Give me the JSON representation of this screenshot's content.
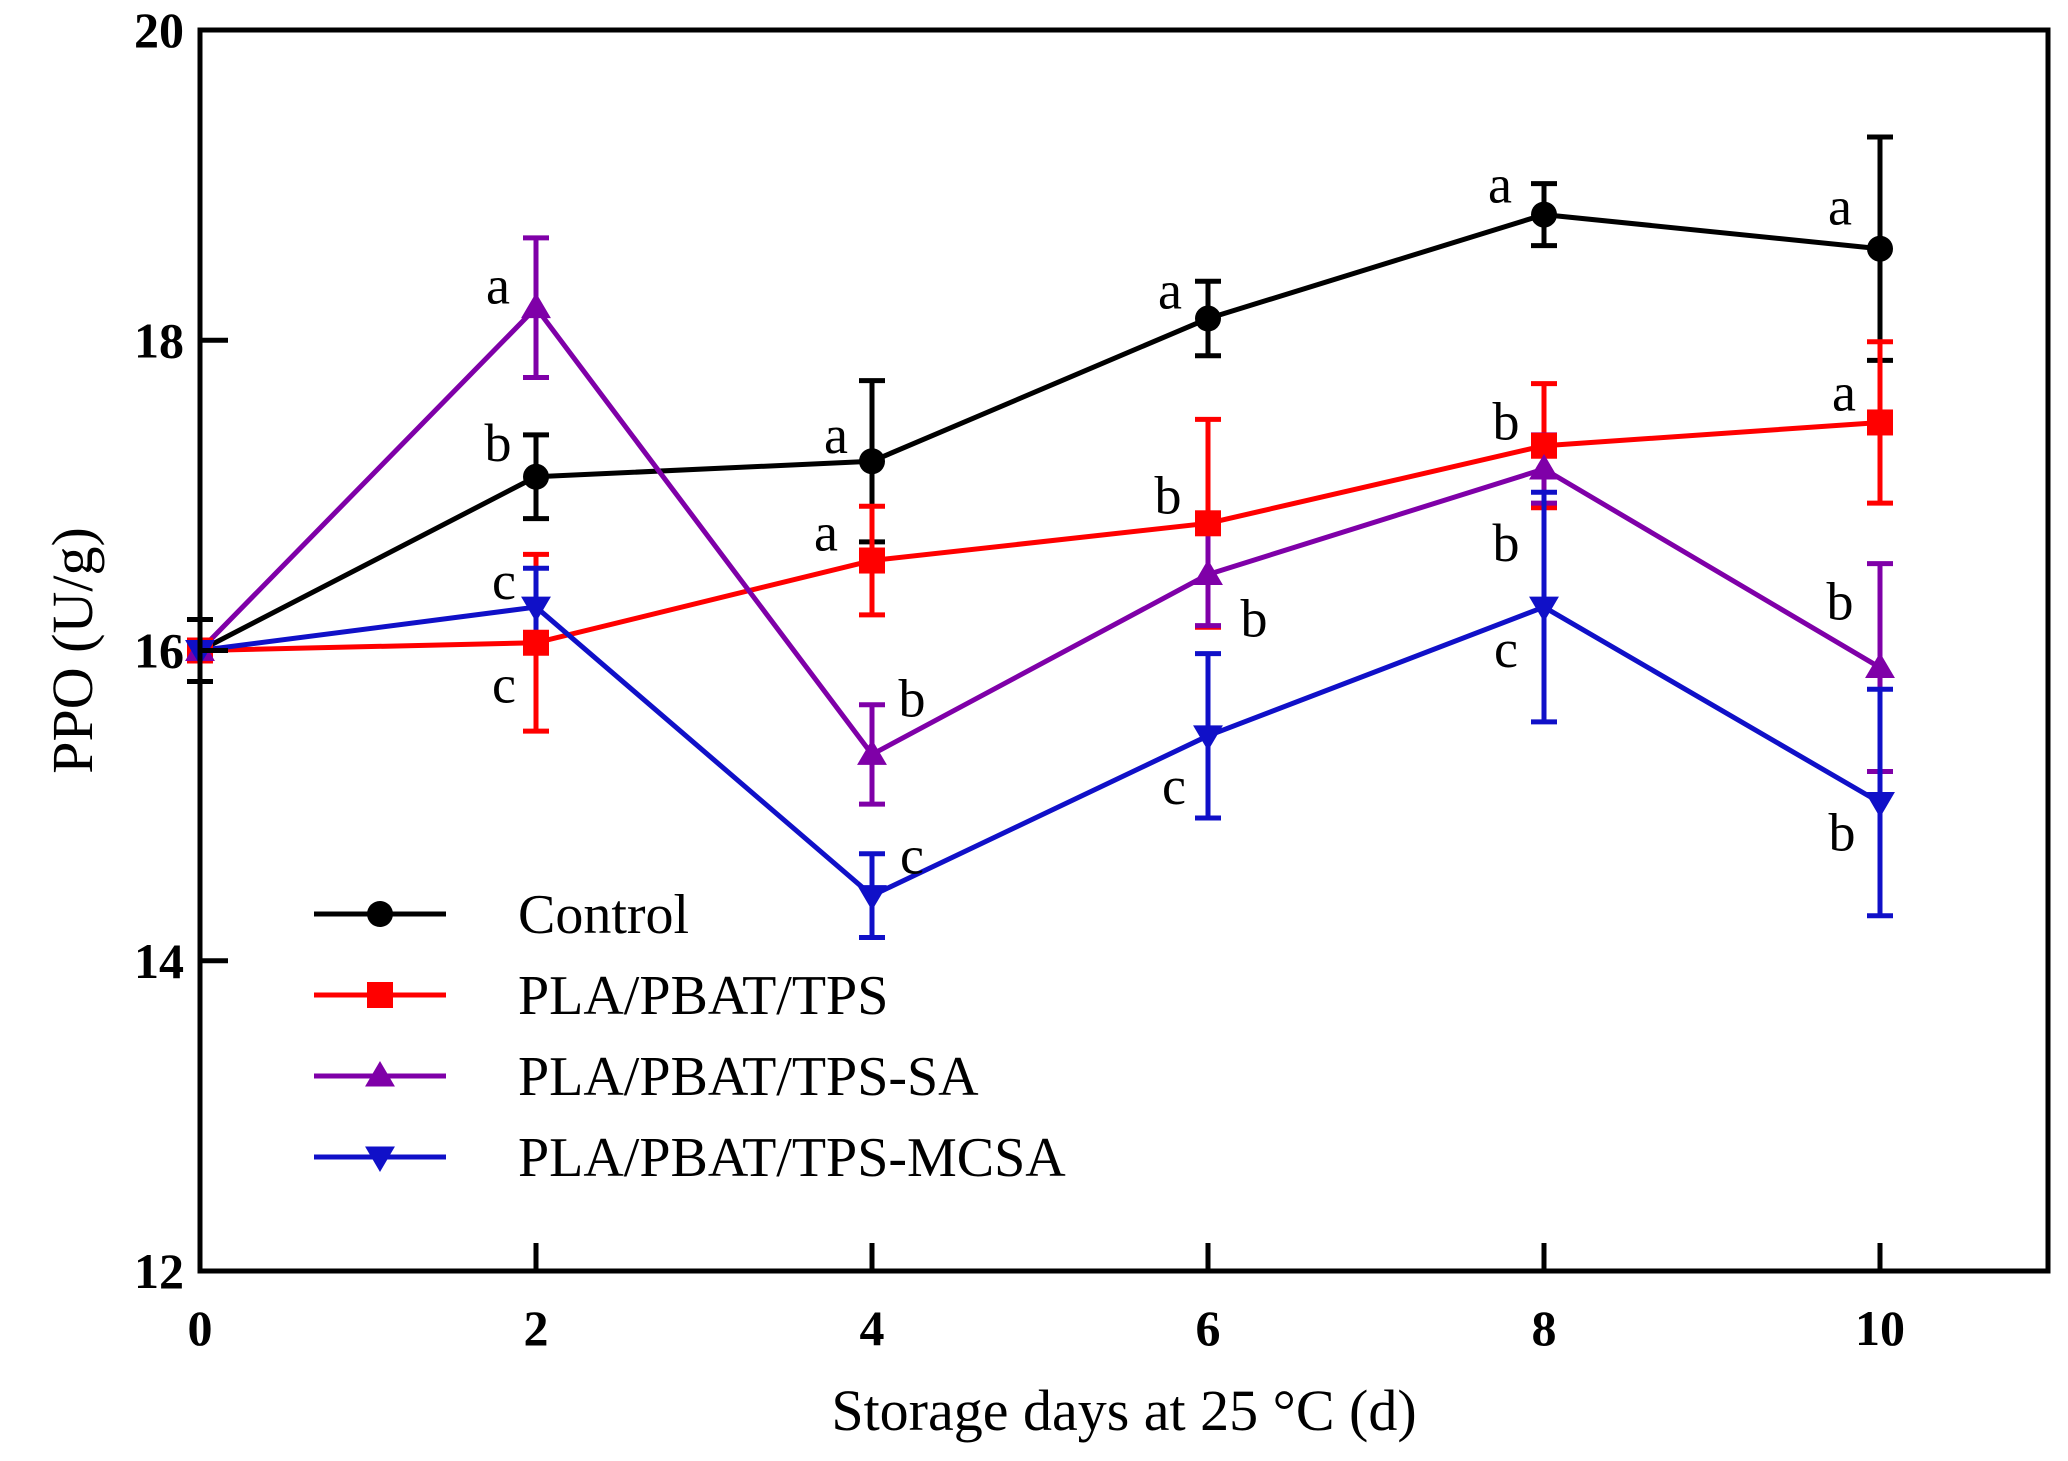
{
  "chart_data": {
    "type": "line",
    "title": "",
    "xlabel": "Storage days at 25 °C (d)",
    "ylabel": "PPO (U/g)",
    "xlim": [
      0,
      11
    ],
    "ylim": [
      12,
      20
    ],
    "xticks": [
      0,
      2,
      4,
      6,
      8,
      10
    ],
    "xtick_labels": [
      "0",
      "2",
      "4",
      "6",
      "8",
      "10"
    ],
    "yticks": [
      12,
      14,
      16,
      18,
      20
    ],
    "ytick_labels": [
      "12",
      "14",
      "16",
      "18",
      "20"
    ],
    "grid": false,
    "legend_position": "bottom-left",
    "x": [
      0,
      2,
      4,
      6,
      8,
      10
    ],
    "series": [
      {
        "name": "Control",
        "color": "#000000",
        "marker": "circle",
        "values": [
          16.0,
          17.12,
          17.22,
          18.14,
          18.81,
          18.59
        ],
        "errors": [
          0.2,
          0.27,
          0.52,
          0.24,
          0.2,
          0.72
        ],
        "sig_labels": [
          "",
          "b",
          "a",
          "a",
          "a",
          "a"
        ]
      },
      {
        "name": "PLA/PBAT/TPS",
        "color": "#ff0000",
        "marker": "square",
        "values": [
          16.0,
          16.05,
          16.58,
          16.82,
          17.32,
          17.47
        ],
        "errors": [
          0.0,
          0.57,
          0.35,
          0.67,
          0.4,
          0.52
        ],
        "sig_labels": [
          "",
          "c",
          "a",
          "b",
          "b",
          "a"
        ]
      },
      {
        "name": "PLA/PBAT/TPS-SA",
        "color": "#7f00a8",
        "marker": "triangle-up",
        "values": [
          16.0,
          18.21,
          15.33,
          16.49,
          17.17,
          15.89
        ],
        "errors": [
          0.0,
          0.45,
          0.32,
          0.33,
          0.22,
          0.67
        ],
        "sig_labels": [
          "",
          "a",
          "b",
          "b",
          "b",
          "b"
        ]
      },
      {
        "name": "PLA/PBAT/TPS-MCSA",
        "color": "#1010c8",
        "marker": "triangle-down",
        "values": [
          16.0,
          16.28,
          14.42,
          15.45,
          16.28,
          15.02
        ],
        "errors": [
          0.0,
          0.25,
          0.27,
          0.53,
          0.74,
          0.73
        ],
        "sig_labels": [
          "",
          "c",
          "c",
          "c",
          "c",
          "b"
        ]
      }
    ]
  }
}
